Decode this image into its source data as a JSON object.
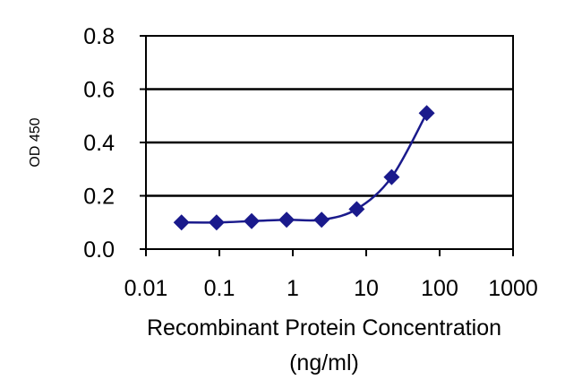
{
  "chart_data": {
    "type": "line",
    "title": "",
    "xlabel": "Recombinant Protein Concentration",
    "xlabel_unit": "(ng/ml)",
    "ylabel": "OD 450",
    "x_scale": "log",
    "xlim": [
      0.01,
      1000
    ],
    "ylim": [
      0.0,
      0.8
    ],
    "x_ticks": [
      0.01,
      0.1,
      1,
      10,
      100,
      1000
    ],
    "x_tick_labels": [
      "0.01",
      "0.1",
      "1",
      "10",
      "100",
      "1000"
    ],
    "y_ticks": [
      0.0,
      0.2,
      0.4,
      0.6,
      0.8
    ],
    "y_tick_labels": [
      "0.0",
      "0.2",
      "0.4",
      "0.6",
      "0.8"
    ],
    "grid": "horizontal",
    "legend": "none",
    "colors": {
      "series": "#1a1a8c",
      "frame": "#000000",
      "grid": "#000000"
    },
    "series": [
      {
        "x": [
          0.0305,
          0.0916,
          0.275,
          0.824,
          2.47,
          7.42,
          22.2,
          66.7
        ],
        "y": [
          0.1,
          0.1,
          0.105,
          0.11,
          0.11,
          0.15,
          0.27,
          0.51
        ]
      }
    ]
  }
}
